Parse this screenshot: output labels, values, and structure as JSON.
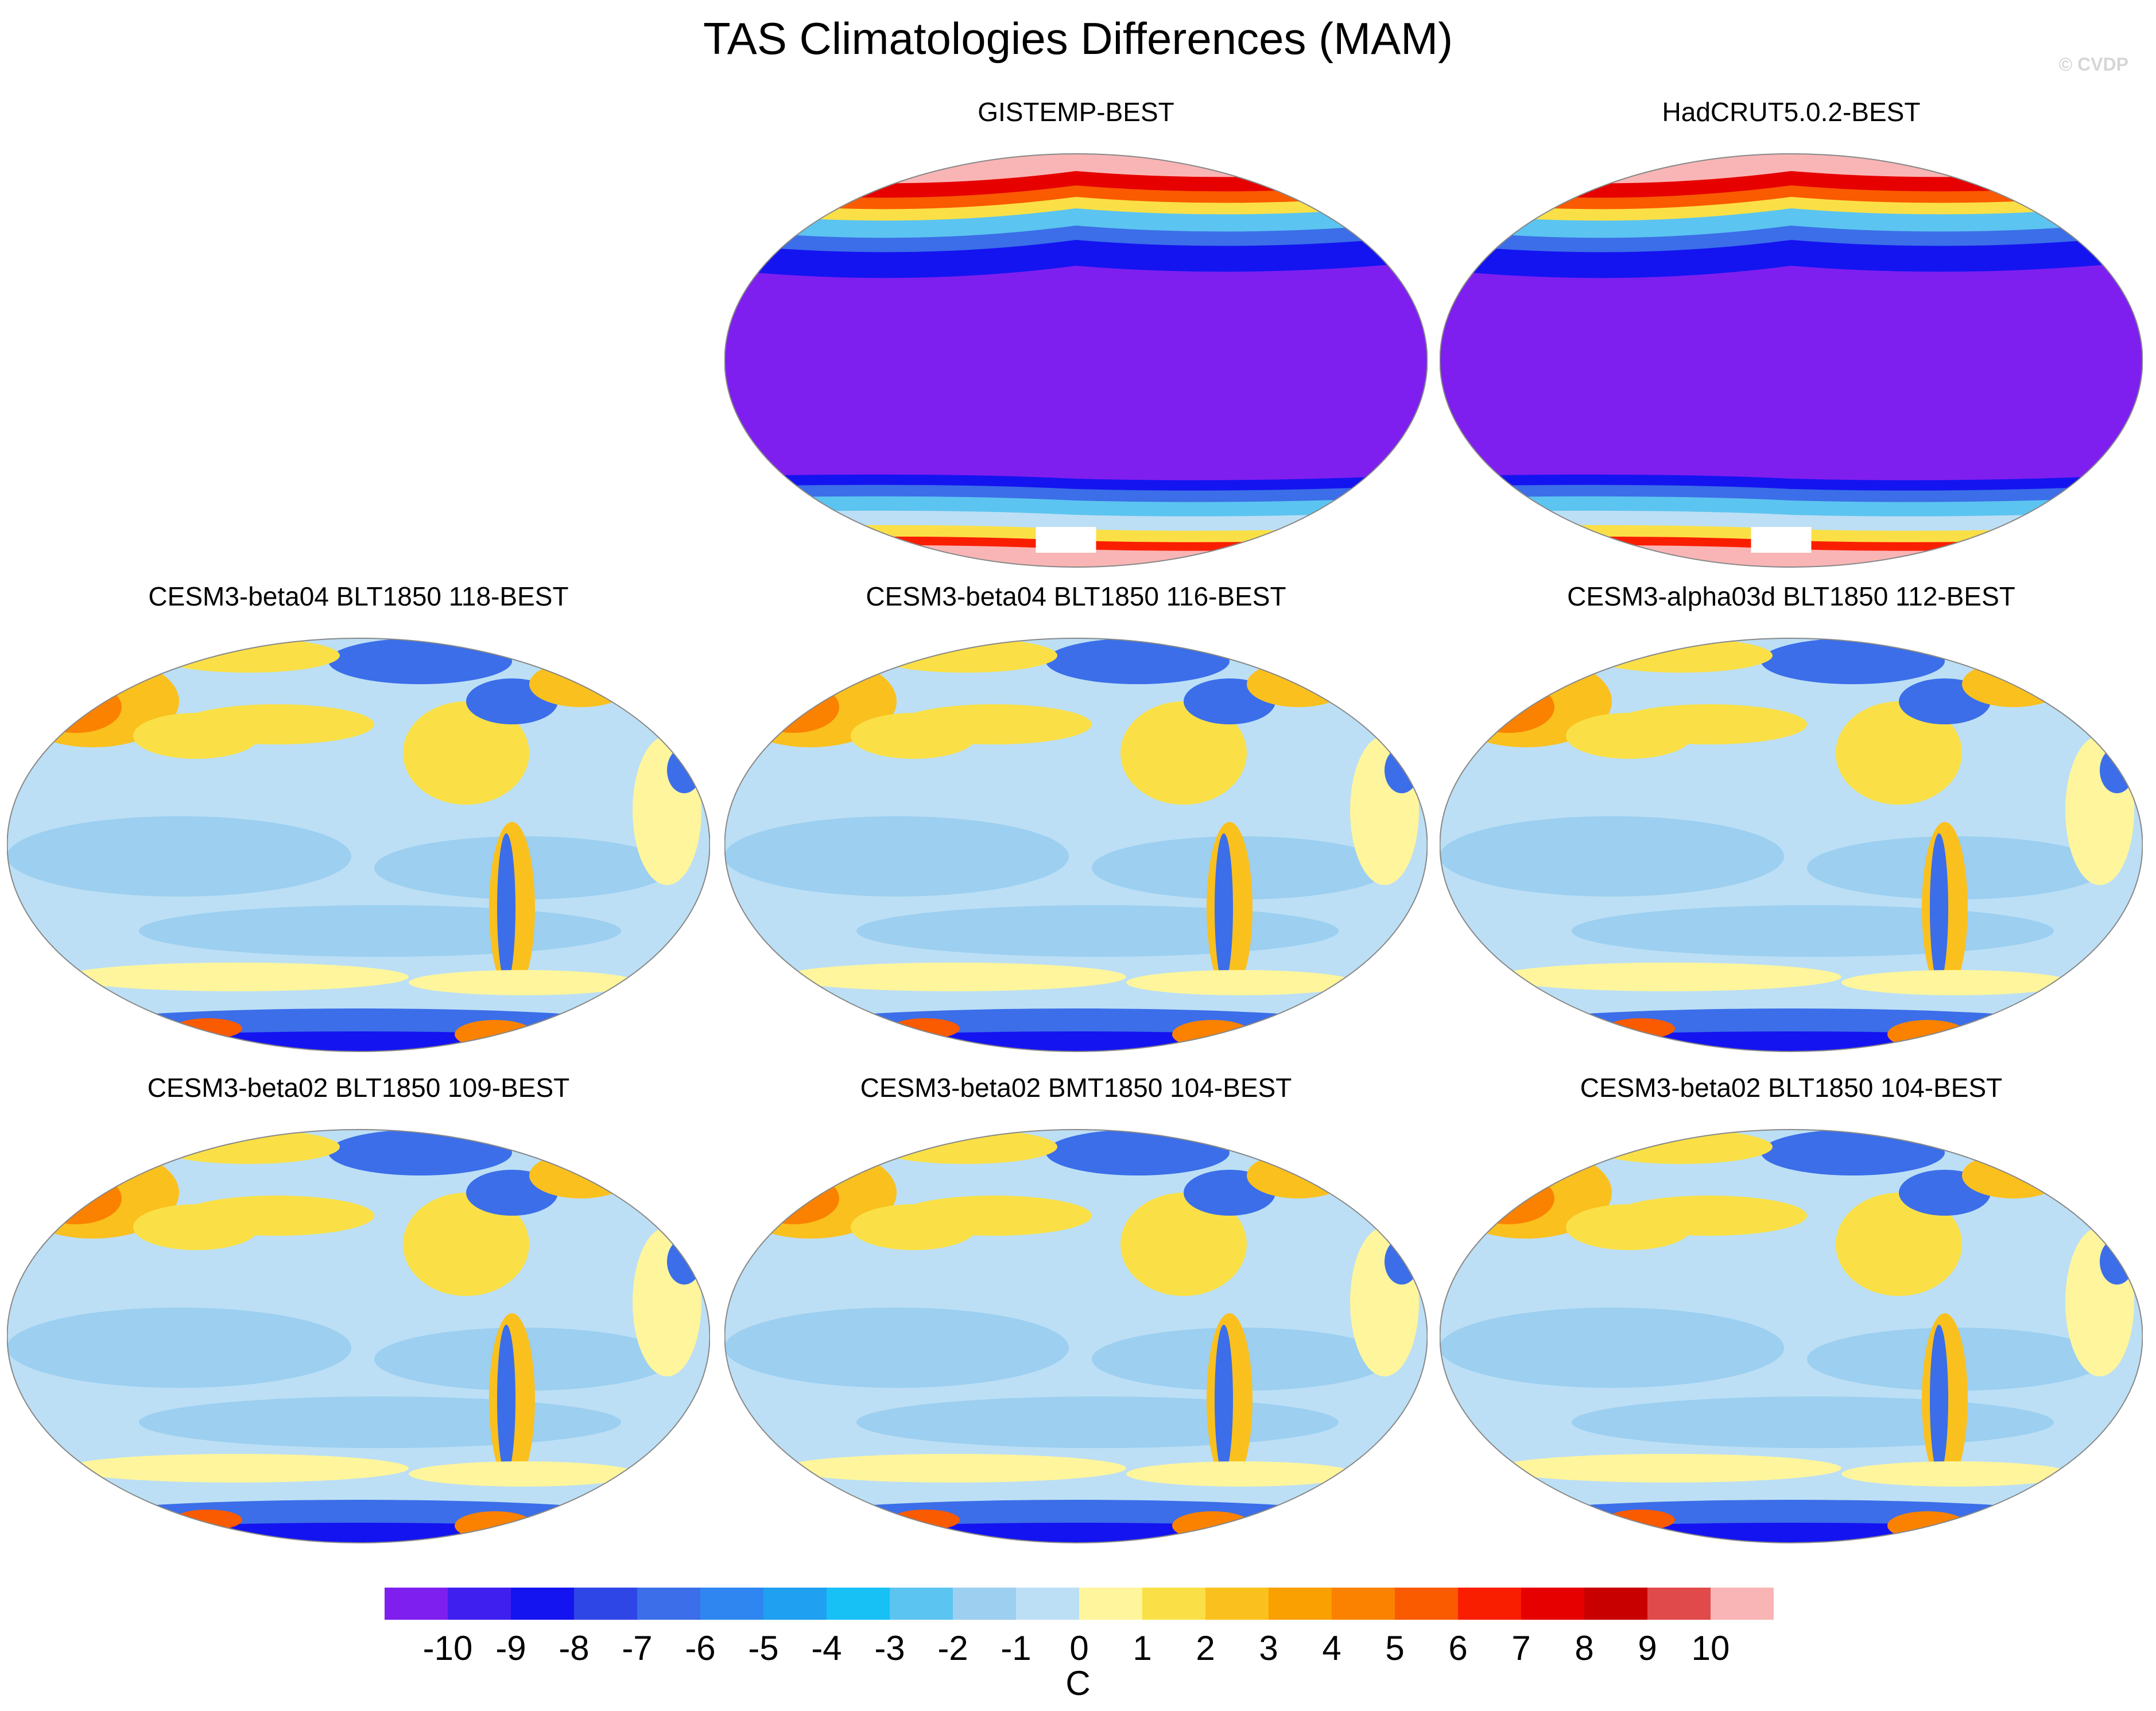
{
  "figure": {
    "title": "TAS Climatologies Differences (MAM)",
    "watermark": "© CVDP"
  },
  "panels": [
    {
      "id": "gistemp",
      "title": "GISTEMP-BEST",
      "pattern": "observational",
      "missing_patches": true
    },
    {
      "id": "hadcrut",
      "title": "HadCRUT5.0.2-BEST",
      "pattern": "observational",
      "missing_patches": true
    },
    {
      "id": "b04_118",
      "title": "CESM3-beta04 BLT1850 118-BEST",
      "pattern": "model"
    },
    {
      "id": "b04_116",
      "title": "CESM3-beta04 BLT1850 116-BEST",
      "pattern": "model"
    },
    {
      "id": "a03d_112",
      "title": "CESM3-alpha03d BLT1850 112-BEST",
      "pattern": "model"
    },
    {
      "id": "b02_109",
      "title": "CESM3-beta02 BLT1850 109-BEST",
      "pattern": "model"
    },
    {
      "id": "b02_bmt104",
      "title": "CESM3-beta02 BMT1850 104-BEST",
      "pattern": "model"
    },
    {
      "id": "b02_blt104",
      "title": "CESM3-beta02 BLT1850 104-BEST",
      "pattern": "model"
    }
  ],
  "colorbar": {
    "unit": "C",
    "labels": [
      "-10",
      "-9",
      "-8",
      "-7",
      "-6",
      "-5",
      "-4",
      "-3",
      "-2",
      "-1",
      "0",
      "1",
      "2",
      "3",
      "4",
      "5",
      "6",
      "7",
      "8",
      "9",
      "10"
    ],
    "colors": [
      "#7f1fef",
      "#3f1fef",
      "#1414f0",
      "#2f46e6",
      "#3b6ee8",
      "#2f86f0",
      "#1fa0f0",
      "#17c0f5",
      "#5cc4f0",
      "#9ccff0",
      "#bcdff5",
      "#fff59c",
      "#fae046",
      "#fac01e",
      "#faa000",
      "#fa8200",
      "#fa5a00",
      "#fa1e00",
      "#e60000",
      "#c80000",
      "#e04a4a",
      "#f9b5b5"
    ]
  },
  "map_colors": {
    "deep_blue": "#7f1fef",
    "light_blue": "#bcdff5",
    "mid_blue": "#9ccff0",
    "yellow": "#fff59c",
    "gold": "#fae046",
    "orange": "#fac01e",
    "pink": "#f9b5b5",
    "red": "#fa1e00"
  }
}
